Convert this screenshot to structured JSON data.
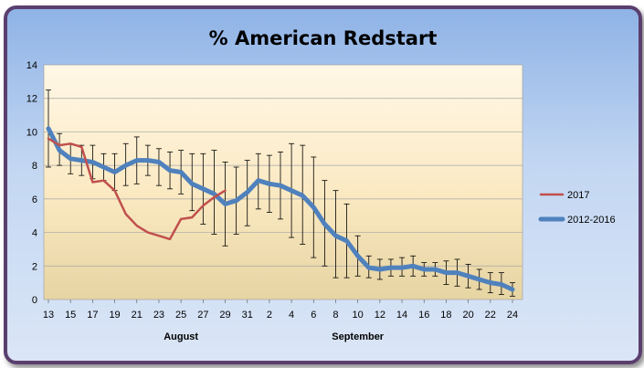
{
  "chart_data": {
    "type": "line",
    "title": "% American Redstart",
    "xlabel": "",
    "ylabel": "",
    "ylim": [
      0,
      14
    ],
    "yticks": [
      0,
      2,
      4,
      6,
      8,
      10,
      12,
      14
    ],
    "x_tick_labels": [
      "13",
      "15",
      "17",
      "19",
      "21",
      "23",
      "25",
      "27",
      "29",
      "31",
      "2",
      "4",
      "6",
      "8",
      "10",
      "12",
      "14",
      "16",
      "18",
      "20",
      "22",
      "24"
    ],
    "month_labels": [
      {
        "label": "August",
        "index": 12
      },
      {
        "label": "September",
        "index": 28
      }
    ],
    "grid": "horizontal",
    "legend_position": "right",
    "n_points": 43,
    "series": [
      {
        "name": "2017",
        "color": "#c0504d",
        "values": [
          9.6,
          9.2,
          9.3,
          9.1,
          7.0,
          7.1,
          6.5,
          5.1,
          4.4,
          4.0,
          3.8,
          3.6,
          4.8,
          4.9,
          5.6,
          6.1,
          6.5
        ]
      },
      {
        "name": "2012-2016",
        "color": "#4f81bd",
        "values": [
          10.2,
          8.9,
          8.4,
          8.3,
          8.2,
          7.9,
          7.6,
          8.0,
          8.3,
          8.3,
          8.2,
          7.7,
          7.6,
          6.9,
          6.6,
          6.3,
          5.7,
          5.9,
          6.4,
          7.1,
          6.9,
          6.8,
          6.5,
          6.2,
          5.5,
          4.5,
          3.8,
          3.5,
          2.6,
          1.9,
          1.8,
          1.9,
          1.9,
          2.0,
          1.8,
          1.8,
          1.6,
          1.6,
          1.4,
          1.2,
          1.0,
          0.9,
          0.6
        ],
        "error_upper": [
          12.5,
          9.9,
          9.3,
          9.2,
          9.2,
          8.7,
          8.7,
          9.3,
          9.7,
          9.2,
          9.0,
          8.8,
          8.9,
          8.7,
          8.7,
          8.9,
          8.2,
          7.9,
          8.3,
          8.7,
          8.6,
          8.8,
          9.3,
          9.2,
          8.5,
          7.1,
          6.5,
          5.7,
          3.8,
          2.6,
          2.4,
          2.4,
          2.5,
          2.6,
          2.2,
          2.2,
          2.3,
          2.4,
          2.1,
          1.8,
          1.6,
          1.6,
          1.0
        ],
        "error_lower": [
          7.9,
          8.0,
          7.5,
          7.4,
          7.2,
          7.1,
          6.5,
          6.8,
          6.9,
          7.4,
          6.8,
          6.6,
          6.3,
          5.3,
          4.5,
          3.9,
          3.2,
          3.9,
          4.4,
          5.4,
          5.2,
          4.8,
          3.7,
          3.3,
          2.5,
          2.0,
          1.3,
          1.3,
          1.4,
          1.3,
          1.2,
          1.4,
          1.4,
          1.4,
          1.4,
          1.4,
          0.9,
          0.8,
          0.7,
          0.6,
          0.4,
          0.3,
          0.2
        ]
      }
    ]
  }
}
